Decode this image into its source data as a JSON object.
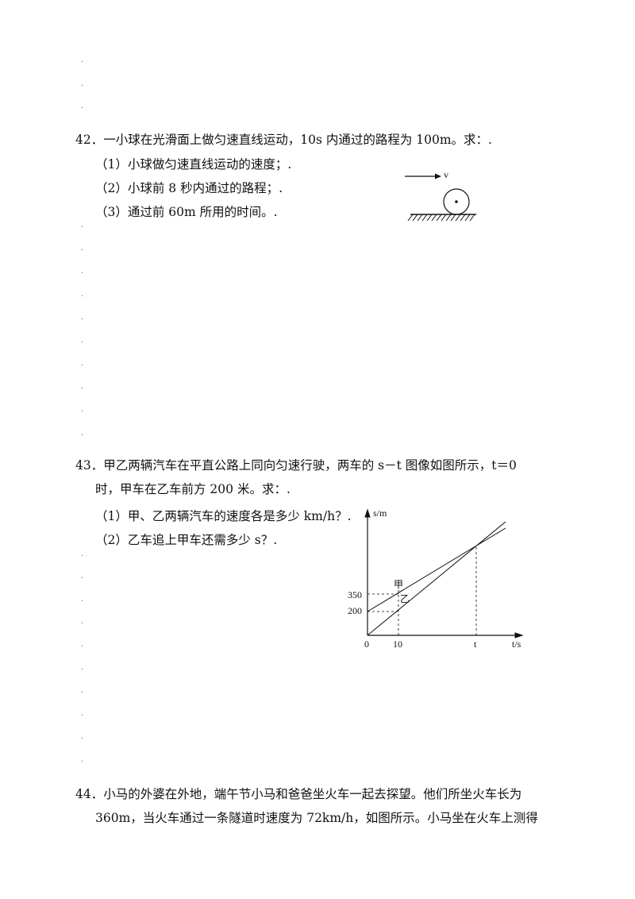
{
  "problems": [
    {
      "lines": [
        "42．一小球在光滑面上做匀速直线运动，10s 内通过的路程为 100m。求：."
      ],
      "parts": [
        "（1）小球做匀速直线运动的速度；.",
        "（2）小球前 8 秒内通过的路程；.",
        "（3）通过前 60m 所用的时间。."
      ],
      "figure": {
        "labels": [
          "v"
        ]
      }
    },
    {
      "lines": [
        "43．甲乙两辆汽车在平直公路上同向匀速行驶，两车的 s－t 图像如图所示，t＝0",
        "时，甲车在乙车前方 200 米。求：."
      ],
      "parts": [
        "（1）甲、乙两辆汽车的速度各是多少 km/h？.",
        "（2）乙车追上甲车还需多少 s？."
      ],
      "figure": {
        "labels": [
          "s/m",
          "t/s",
          "0",
          "10",
          "t",
          "350",
          "200",
          "甲",
          "乙"
        ]
      }
    },
    {
      "lines": [
        "44．小马的外婆在外地，端午节小马和爸爸坐火车一起去探望。他们所坐火车长为",
        "360m，当火车通过一条隧道时速度为 72km/h，如图所示。小马坐在火车上测得"
      ],
      "parts": []
    }
  ],
  "margin_marks": [
    ".",
    ".",
    ".",
    ".",
    ".",
    ".",
    ".",
    ".",
    ".",
    ".",
    ".",
    ".",
    ".",
    ".",
    ".",
    ".",
    ".",
    ".",
    ".",
    ".",
    ".",
    ".",
    "."
  ]
}
